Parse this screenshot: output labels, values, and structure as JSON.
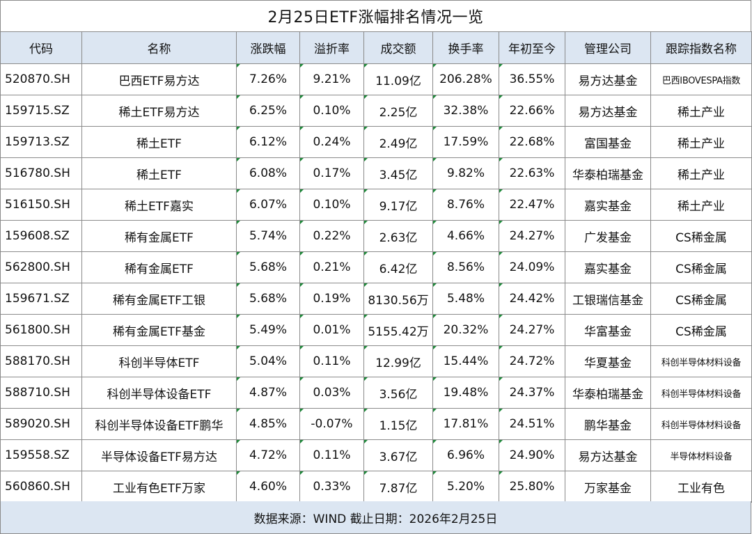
{
  "title": "2月25日ETF涨幅排名情况一览",
  "columns": [
    "代码",
    "名称",
    "涨跌幅",
    "溢折率",
    "成交额",
    "换手率",
    "年初至今",
    "管理公司",
    "跟踪指数名称"
  ],
  "rows": [
    [
      "520870.SH",
      "巴西ETF易方达",
      "7.26%",
      "9.21%",
      "11.09亿",
      "206.28%",
      "36.55%",
      "易方达基金",
      "巴西IBOVESPA指数"
    ],
    [
      "159715.SZ",
      "稀土ETF易方达",
      "6.25%",
      "0.10%",
      "2.25亿",
      "32.38%",
      "22.66%",
      "易方达基金",
      "稀土产业"
    ],
    [
      "159713.SZ",
      "稀土ETF",
      "6.12%",
      "0.24%",
      "2.49亿",
      "17.59%",
      "22.68%",
      "富国基金",
      "稀土产业"
    ],
    [
      "516780.SH",
      "稀土ETF",
      "6.08%",
      "0.17%",
      "3.45亿",
      "9.82%",
      "22.63%",
      "华泰柏瑞基金",
      "稀土产业"
    ],
    [
      "516150.SH",
      "稀土ETF嘉实",
      "6.07%",
      "0.10%",
      "9.17亿",
      "8.76%",
      "22.47%",
      "嘉实基金",
      "稀土产业"
    ],
    [
      "159608.SZ",
      "稀有金属ETF",
      "5.74%",
      "0.22%",
      "2.63亿",
      "4.66%",
      "24.27%",
      "广发基金",
      "CS稀金属"
    ],
    [
      "562800.SH",
      "稀有金属ETF",
      "5.68%",
      "0.21%",
      "6.42亿",
      "8.56%",
      "24.09%",
      "嘉实基金",
      "CS稀金属"
    ],
    [
      "159671.SZ",
      "稀有金属ETF工银",
      "5.68%",
      "0.19%",
      "8130.56万",
      "5.48%",
      "24.42%",
      "工银瑞信基金",
      "CS稀金属"
    ],
    [
      "561800.SH",
      "稀有金属ETF基金",
      "5.49%",
      "0.01%",
      "5155.42万",
      "20.32%",
      "24.27%",
      "华富基金",
      "CS稀金属"
    ],
    [
      "588170.SH",
      "科创半导体ETF",
      "5.04%",
      "0.11%",
      "12.99亿",
      "15.44%",
      "24.72%",
      "华夏基金",
      "科创半导体材料设备"
    ],
    [
      "588710.SH",
      "科创半导体设备ETF",
      "4.87%",
      "0.03%",
      "3.56亿",
      "19.48%",
      "24.37%",
      "华泰柏瑞基金",
      "科创半导体材料设备"
    ],
    [
      "589020.SH",
      "科创半导体设备ETF鹏华",
      "4.85%",
      "-0.07%",
      "1.15亿",
      "17.81%",
      "24.51%",
      "鹏华基金",
      "科创半导体材料设备"
    ],
    [
      "159558.SZ",
      "半导体设备ETF易方达",
      "4.72%",
      "0.11%",
      "3.67亿",
      "6.96%",
      "24.90%",
      "易方达基金",
      "半导体材料设备"
    ],
    [
      "560860.SH",
      "工业有色ETF万家",
      "4.60%",
      "0.33%",
      "7.87亿",
      "5.20%",
      "25.80%",
      "万家基金",
      "工业有色"
    ]
  ],
  "footer": "数据来源：WIND  截止日期：2026年2月25日"
}
